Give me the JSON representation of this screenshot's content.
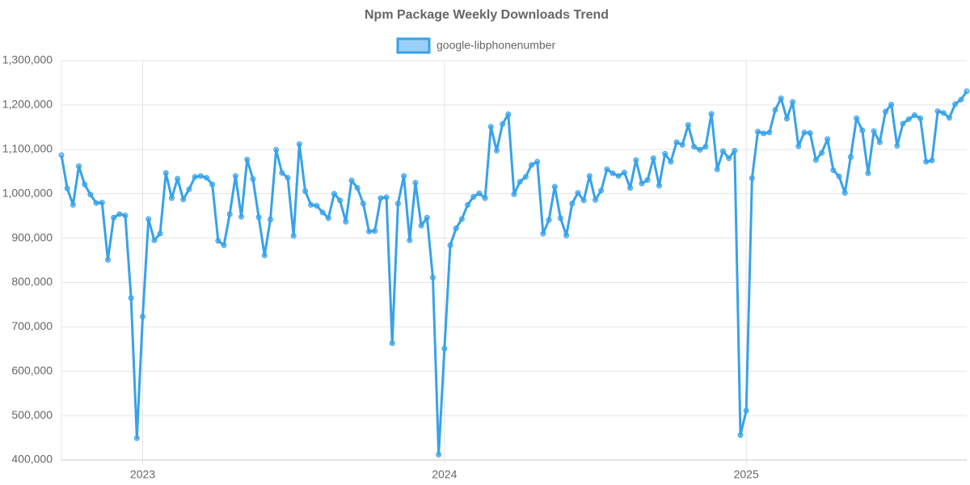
{
  "chart_data": {
    "type": "line",
    "title": "Npm Package Weekly Downloads Trend",
    "legend": "top",
    "grid": true,
    "series": [
      {
        "name": "google-libphonenumber",
        "color": "#36a2eb",
        "values": [
          1087000,
          1012000,
          975000,
          1062000,
          1021000,
          998000,
          979000,
          980000,
          851000,
          946000,
          954000,
          951000,
          765000,
          449000,
          723000,
          943000,
          895000,
          910000,
          1047000,
          990000,
          1034000,
          987000,
          1010000,
          1038000,
          1040000,
          1036000,
          1021000,
          894000,
          884000,
          954000,
          1040000,
          948000,
          1077000,
          1033000,
          947000,
          861000,
          942000,
          1099000,
          1047000,
          1036000,
          905000,
          1112000,
          1006000,
          975000,
          973000,
          958000,
          945000,
          1000000,
          985000,
          937000,
          1030000,
          1013000,
          978000,
          915000,
          916000,
          990000,
          992000,
          663000,
          978000,
          1040000,
          895000,
          1025000,
          928000,
          946000,
          811000,
          412000,
          651000,
          884000,
          922000,
          943000,
          975000,
          993000,
          1001000,
          990000,
          1151000,
          1097000,
          1157000,
          1179000,
          999000,
          1027000,
          1038000,
          1065000,
          1072000,
          910000,
          941000,
          1016000,
          945000,
          906000,
          978000,
          1002000,
          985000,
          1040000,
          986000,
          1007000,
          1055000,
          1046000,
          1040000,
          1048000,
          1013000,
          1076000,
          1023000,
          1031000,
          1080000,
          1018000,
          1090000,
          1072000,
          1116000,
          1110000,
          1155000,
          1106000,
          1099000,
          1106000,
          1180000,
          1055000,
          1096000,
          1080000,
          1097000,
          456000,
          511000,
          1035000,
          1140000,
          1136000,
          1138000,
          1189000,
          1215000,
          1169000,
          1207000,
          1107000,
          1138000,
          1137000,
          1076000,
          1092000,
          1123000,
          1053000,
          1039000,
          1002000,
          1083000,
          1170000,
          1143000,
          1046000,
          1141000,
          1116000,
          1185000,
          1201000,
          1108000,
          1158000,
          1168000,
          1177000,
          1170000,
          1072000,
          1075000,
          1186000,
          1182000,
          1171000,
          1202000,
          1212000,
          1231000
        ]
      }
    ],
    "xlim": [
      0,
      156
    ],
    "xticks": [
      {
        "value": 14,
        "label": "2023"
      },
      {
        "value": 66,
        "label": "2024"
      },
      {
        "value": 118,
        "label": "2025"
      }
    ],
    "ylim": [
      400000,
      1300000
    ],
    "yticks": [
      {
        "value": 400000,
        "label": "400,000"
      },
      {
        "value": 500000,
        "label": "500,000"
      },
      {
        "value": 600000,
        "label": "600,000"
      },
      {
        "value": 700000,
        "label": "700,000"
      },
      {
        "value": 800000,
        "label": "800,000"
      },
      {
        "value": 900000,
        "label": "900,000"
      },
      {
        "value": 1000000,
        "label": "1,000,000"
      },
      {
        "value": 1100000,
        "label": "1,100,000"
      },
      {
        "value": 1200000,
        "label": "1,200,000"
      },
      {
        "value": 1300000,
        "label": "1,300,000"
      }
    ]
  }
}
